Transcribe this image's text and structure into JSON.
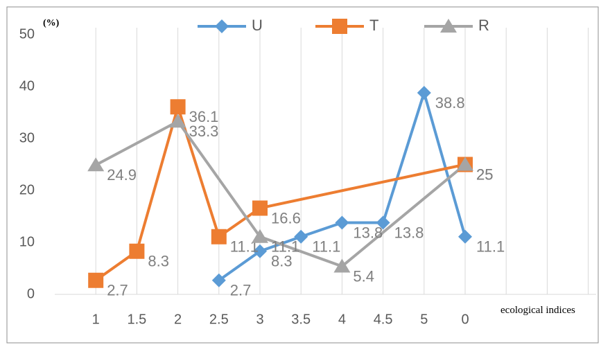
{
  "chart_data": {
    "type": "line",
    "y_unit_label": "(%)",
    "x_label": "ecological indices",
    "categories": [
      null,
      "1",
      "1.5",
      "2",
      "2.5",
      "3",
      "3.5",
      "4",
      "4.5",
      "5",
      "0",
      null,
      null,
      null
    ],
    "series": [
      {
        "name": "U",
        "color": "#5b9bd5",
        "marker": "diamond",
        "values": [
          null,
          null,
          null,
          null,
          2.7,
          8.3,
          11.1,
          13.8,
          13.8,
          38.8,
          11.1,
          null,
          null,
          null
        ]
      },
      {
        "name": "T",
        "color": "#ed7d31",
        "marker": "square",
        "values": [
          null,
          2.7,
          8.3,
          36.1,
          11.1,
          16.6,
          null,
          null,
          null,
          null,
          25,
          null,
          null,
          null
        ]
      },
      {
        "name": "R",
        "color": "#a5a5a5",
        "marker": "triangle",
        "values": [
          null,
          24.9,
          null,
          33.3,
          null,
          11.1,
          null,
          5.4,
          null,
          null,
          25,
          null,
          null,
          null
        ]
      }
    ],
    "span_gaps": true,
    "ylim": [
      0,
      50
    ],
    "yticks": [
      0,
      10,
      20,
      30,
      40,
      50
    ],
    "grid": "x",
    "legend": "top"
  }
}
